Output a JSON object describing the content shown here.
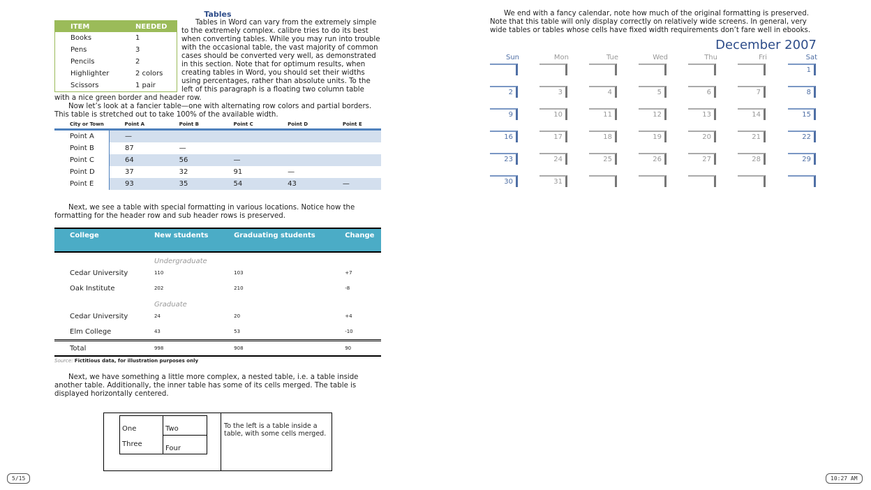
{
  "left": {
    "title": "Tables",
    "para1": "Tables in Word can vary from the extremely simple to the extremely complex. calibre tries to do its best when converting tables. While you may run into trouble with the occasional table, the vast majority of common cases should be converted very well, as demonstrated in this section. Note that for optimum results, when creating tables in Word, you should set their widths using percentages, rather than absolute units. To the left of this paragraph is a floating two column table with a nice green border and header row.",
    "items_table": {
      "headers": [
        "ITEM",
        "NEEDED"
      ],
      "rows": [
        [
          "Books",
          "1"
        ],
        [
          "Pens",
          "3"
        ],
        [
          "Pencils",
          "2"
        ],
        [
          "Highlighter",
          "2 colors"
        ],
        [
          "Scissors",
          "1 pair"
        ]
      ],
      "accent": "#9bbb59"
    },
    "para2": "Now let’s look at a fancier table—one with alternating row colors and partial borders. This table is stretched out to take 100% of the available width.",
    "distance_table": {
      "headers": [
        "City or Town",
        "Point A",
        "Point B",
        "Point C",
        "Point D",
        "Point E"
      ],
      "rows": [
        [
          "Point A",
          "—",
          "",
          "",
          "",
          ""
        ],
        [
          "Point B",
          "87",
          "—",
          "",
          "",
          ""
        ],
        [
          "Point C",
          "64",
          "56",
          "—",
          "",
          ""
        ],
        [
          "Point D",
          "37",
          "32",
          "91",
          "—",
          ""
        ],
        [
          "Point E",
          "93",
          "35",
          "54",
          "43",
          "—"
        ]
      ],
      "accent": "#4f81bd",
      "alt_row": "#d3dfee"
    },
    "para3": "Next, we see a table with special formatting in various locations. Notice how the formatting for the header row and sub header rows is preserved.",
    "college_table": {
      "headers": [
        "College",
        "New students",
        "Graduating students",
        "Change"
      ],
      "sections": [
        {
          "label": "Undergraduate",
          "rows": [
            [
              "Cedar University",
              "110",
              "103",
              "+7"
            ],
            [
              "Oak Institute",
              "202",
              "210",
              "-8"
            ]
          ]
        },
        {
          "label": "Graduate",
          "rows": [
            [
              "Cedar University",
              "24",
              "20",
              "+4"
            ],
            [
              "Elm College",
              "43",
              "53",
              "-10"
            ]
          ]
        }
      ],
      "total": [
        "Total",
        "998",
        "908",
        "90"
      ],
      "header_color": "#4bacc6"
    },
    "source_label": "Source:",
    "source_text": "Fictitious data, for illustration purposes only",
    "para4": "Next, we have something a little more complex, a nested table, i.e. a table inside another table. Additionally, the inner table has some of its cells merged. The table is displayed horizontally centered.",
    "nested": {
      "one": "One",
      "two": "Two",
      "three": "Three",
      "four": "Four",
      "right_text": "To the left is a table inside a table, with some cells merged."
    }
  },
  "right": {
    "para": "We end with a fancy calendar, note how much of the original formatting is preserved. Note that this table will only display correctly on relatively wide screens. In general, very wide tables or tables whose cells have fixed width requirements don’t fare well in ebooks.",
    "calendar": {
      "title": "December 2007",
      "days": [
        "Sun",
        "Mon",
        "Tue",
        "Wed",
        "Thu",
        "Fri",
        "Sat"
      ],
      "weeks": [
        [
          "",
          "",
          "",
          "",
          "",
          "",
          "1"
        ],
        [
          "2",
          "3",
          "4",
          "5",
          "6",
          "7",
          "8"
        ],
        [
          "9",
          "10",
          "11",
          "12",
          "13",
          "14",
          "15"
        ],
        [
          "16",
          "17",
          "18",
          "19",
          "20",
          "21",
          "22"
        ],
        [
          "23",
          "24",
          "25",
          "26",
          "27",
          "28",
          "29"
        ],
        [
          "30",
          "31",
          "",
          "",
          "",
          "",
          ""
        ]
      ],
      "accent": "#4f6fa5"
    }
  },
  "status": {
    "page": "5/15",
    "time": "10:27 AM"
  }
}
